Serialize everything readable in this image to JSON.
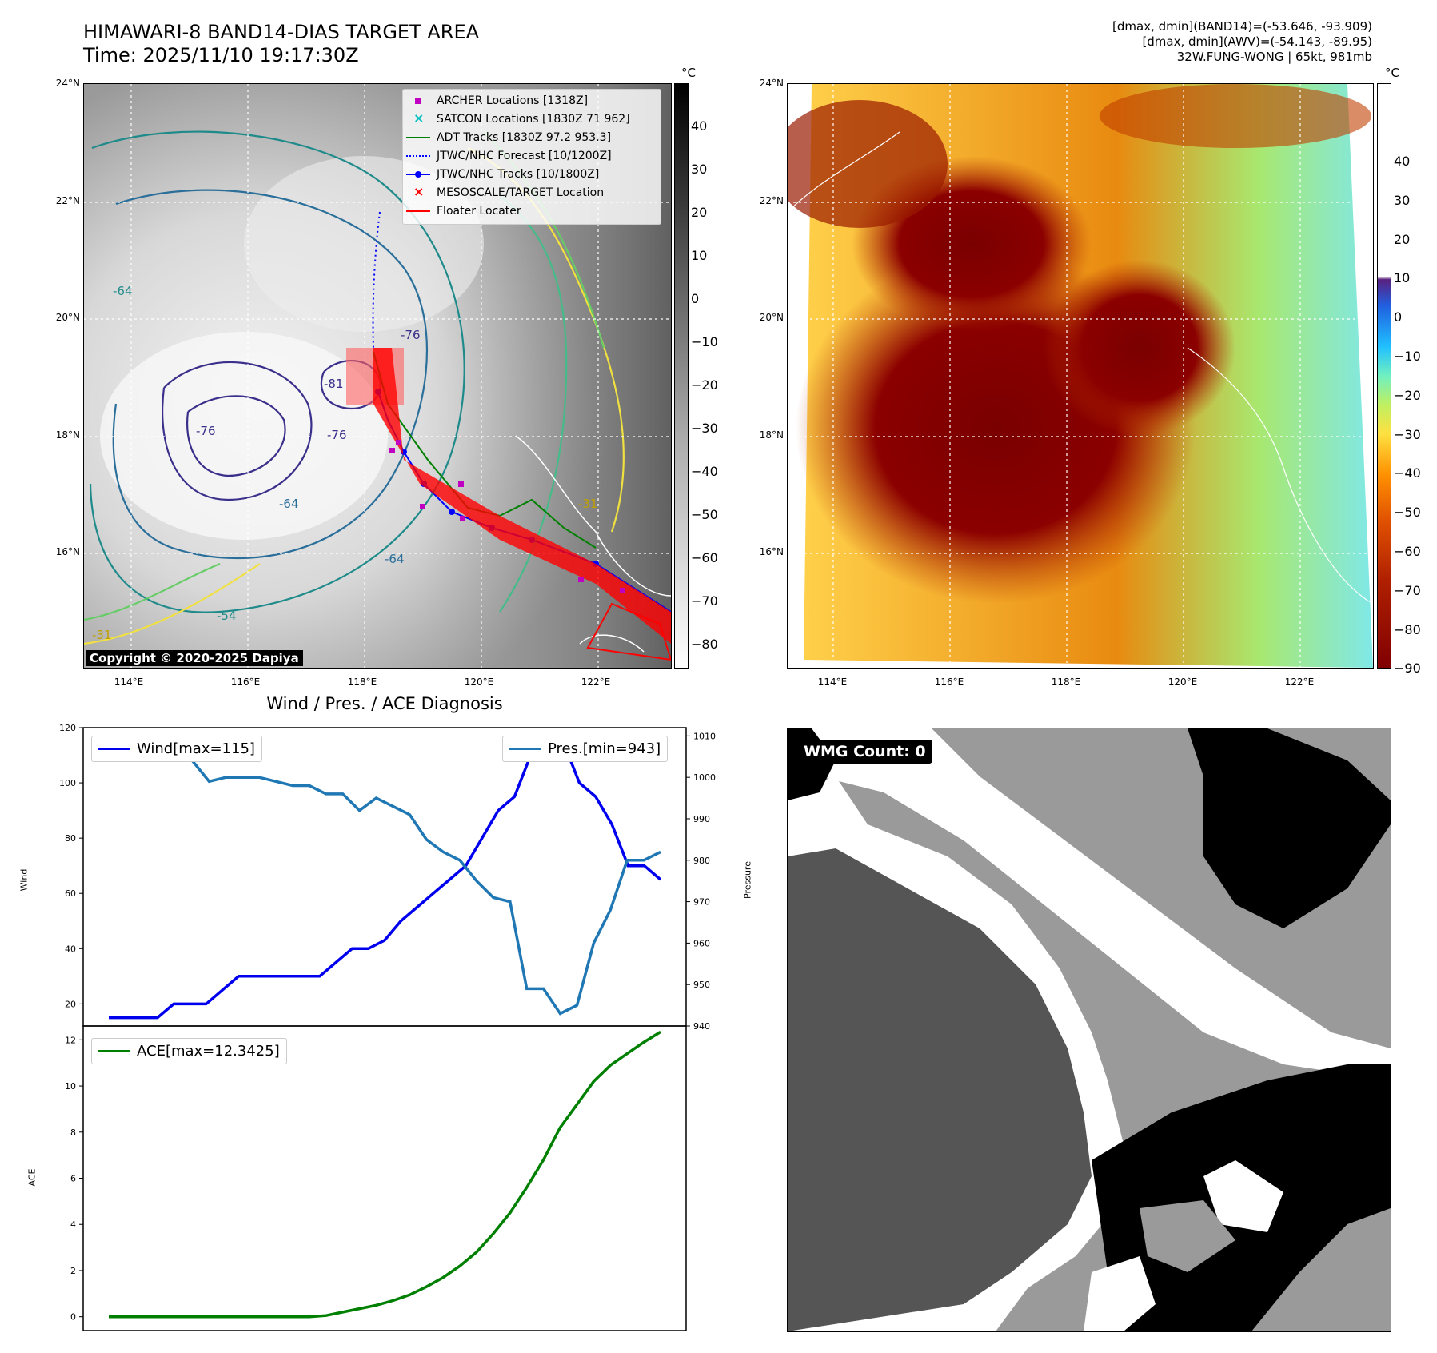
{
  "header": {
    "title_line1": "HIMAWARI-8 BAND14-DIAS TARGET AREA",
    "title_line2": "Time: 2025/11/10 19:17:30Z",
    "info_line1": "[dmax, dmin](BAND14)=(-53.646, -93.909)",
    "info_line2": "[dmax, dmin](AWV)=(-54.143, -89.95)",
    "info_line3": "32W.FUNG-WONG | 65kt, 981mb"
  },
  "map": {
    "lon_ticks": [
      "114°E",
      "116°E",
      "118°E",
      "120°E",
      "122°E"
    ],
    "lat_ticks": [
      "24°N",
      "22°N",
      "20°N",
      "18°N",
      "16°N"
    ],
    "colorbar_unit": "°C",
    "colorbar1_ticks": [
      "40",
      "30",
      "20",
      "10",
      "0",
      "−10",
      "−20",
      "−30",
      "−40",
      "−50",
      "−60",
      "−70",
      "−80"
    ],
    "colorbar2_ticks": [
      "40",
      "30",
      "20",
      "10",
      "0",
      "−10",
      "−20",
      "−30",
      "−40",
      "−50",
      "−60",
      "−70",
      "−80",
      "−90"
    ],
    "copyright": "Copyright © 2020-2025 Dapiya",
    "contour_labels": [
      "-64",
      "-76",
      "-81",
      "-76",
      "-64",
      "-54",
      "-31",
      "-64",
      "-76",
      "-31"
    ],
    "legend": [
      {
        "label": "ARCHER Locations [1318Z]",
        "color": "#c000c0",
        "marker": "square"
      },
      {
        "label": "SATCON Locations [1830Z 71 962]",
        "color": "#00c0c0",
        "marker": "x"
      },
      {
        "label": "ADT Tracks [1830Z 97.2 953.3]",
        "color": "#008000",
        "marker": "line"
      },
      {
        "label": "JTWC/NHC Forecast [10/1200Z]",
        "color": "#0000ff",
        "marker": "dotted"
      },
      {
        "label": "JTWC/NHC Tracks [10/1800Z]",
        "color": "#0000ff",
        "marker": "line-dot"
      },
      {
        "label": "MESOSCALE/TARGET Location",
        "color": "#ff0000",
        "marker": "x"
      },
      {
        "label": "Floater Locater",
        "color": "#ff0000",
        "marker": "line"
      }
    ]
  },
  "diagnosis": {
    "title": "Wind / Pres. / ACE Diagnosis",
    "wind_legend": "Wind[max=115]",
    "pres_legend": "Pres.[min=943]",
    "ace_legend": "ACE[max=12.3425]",
    "wind_ylabel": "Wind",
    "pres_ylabel": "Pressure",
    "ace_ylabel": "ACE",
    "wmg_label": "WMG Count: 0"
  },
  "chart_data": [
    {
      "type": "line",
      "title": "Wind / Pres. / ACE Diagnosis",
      "ylabel": "Wind",
      "ylim": [
        12,
        120
      ],
      "yticks": [
        "20",
        "40",
        "60",
        "80",
        "100",
        "120"
      ],
      "series": [
        {
          "name": "Wind[max=115]",
          "color": "#0000ee",
          "values": [
            15,
            15,
            15,
            15,
            20,
            20,
            20,
            25,
            30,
            30,
            30,
            30,
            30,
            30,
            35,
            40,
            40,
            43,
            50,
            55,
            60,
            65,
            70,
            80,
            90,
            95,
            110,
            110,
            115,
            100,
            95,
            85,
            70,
            70,
            65
          ]
        }
      ]
    },
    {
      "type": "line",
      "ylabel": "Pressure",
      "ylim": [
        940,
        1012
      ],
      "yticks": [
        "940",
        "950",
        "960",
        "970",
        "980",
        "990",
        "1000",
        "1010"
      ],
      "series": [
        {
          "name": "Pres.[min=943]",
          "color": "#1f77b4",
          "values": [
            1009,
            1006,
            1006,
            1006,
            1005,
            1004,
            999,
            1000,
            1000,
            1000,
            999,
            998,
            998,
            996,
            996,
            992,
            995,
            993,
            991,
            985,
            982,
            980,
            975,
            971,
            970,
            949,
            949,
            943,
            945,
            960,
            968,
            980,
            980,
            982
          ]
        }
      ]
    },
    {
      "type": "line",
      "ylabel": "ACE",
      "ylim": [
        -0.6,
        12.6
      ],
      "yticks": [
        "0",
        "2",
        "4",
        "6",
        "8",
        "10",
        "12"
      ],
      "series": [
        {
          "name": "ACE[max=12.3425]",
          "color": "#008000",
          "values": [
            0,
            0,
            0,
            0,
            0,
            0,
            0,
            0,
            0,
            0,
            0,
            0,
            0,
            0.05,
            0.2,
            0.35,
            0.5,
            0.7,
            0.95,
            1.3,
            1.7,
            2.2,
            2.8,
            3.6,
            4.5,
            5.6,
            6.8,
            8.2,
            9.2,
            10.2,
            10.9,
            11.4,
            11.9,
            12.3425
          ]
        }
      ]
    }
  ]
}
